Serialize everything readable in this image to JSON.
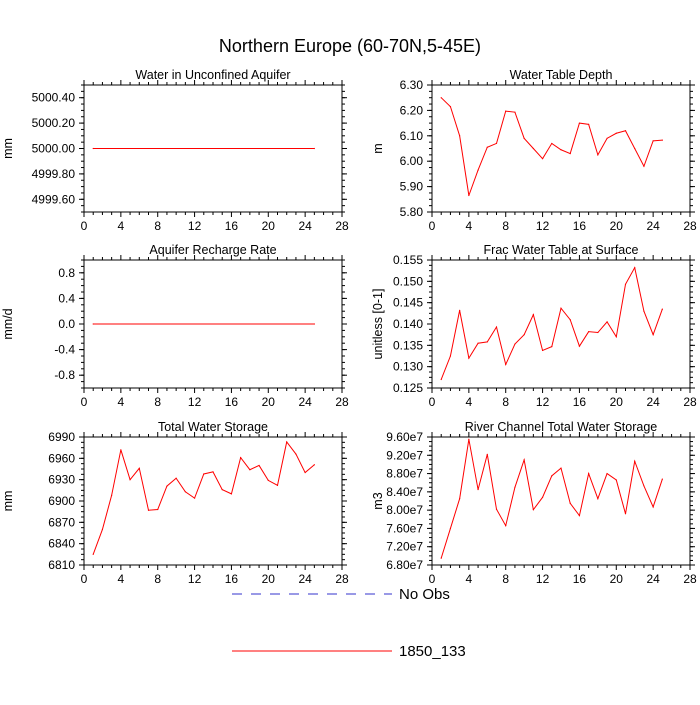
{
  "title": "Northern Europe (60-70N,5-45E)",
  "colors": {
    "series": "#ff0000",
    "noobs": "#3333cc",
    "axis": "#000000"
  },
  "legend": {
    "placement": "bottom-center",
    "items": [
      {
        "label": "No Obs",
        "style": "dashed",
        "color": "#3333cc"
      },
      {
        "label": "1850_133",
        "style": "solid",
        "color": "#ff0000"
      }
    ]
  },
  "chart_data": [
    {
      "type": "line",
      "title": "Water in Unconfined Aquifer",
      "ylabel": "mm",
      "xlim": [
        0,
        28
      ],
      "ylim": [
        4999.5,
        5000.5
      ],
      "xticks": [
        0,
        4,
        8,
        12,
        16,
        20,
        24,
        28
      ],
      "yticks": [
        4999.6,
        4999.8,
        5000.0,
        5000.2,
        5000.4
      ],
      "ytick_labels": [
        "4999.60",
        "4999.80",
        "5000.00",
        "5000.20",
        "5000.40"
      ],
      "x": [
        1,
        25
      ],
      "series": [
        {
          "values": [
            5000.0,
            5000.0
          ]
        }
      ]
    },
    {
      "type": "line",
      "title": "Water Table Depth",
      "ylabel": "m",
      "xlim": [
        0,
        28
      ],
      "ylim": [
        5.8,
        6.3
      ],
      "xticks": [
        0,
        4,
        8,
        12,
        16,
        20,
        24,
        28
      ],
      "yticks": [
        5.8,
        5.9,
        6.0,
        6.1,
        6.2,
        6.3
      ],
      "ytick_labels": [
        "5.80",
        "5.90",
        "6.00",
        "6.10",
        "6.20",
        "6.30"
      ],
      "x": [
        1,
        2,
        3,
        4,
        5,
        6,
        7,
        8,
        9,
        10,
        11,
        12,
        13,
        14,
        15,
        16,
        17,
        18,
        19,
        20,
        21,
        22,
        23,
        24,
        25
      ],
      "series": [
        {
          "values": [
            6.25,
            6.215,
            6.1,
            5.865,
            5.965,
            6.055,
            6.07,
            6.197,
            6.193,
            6.09,
            6.05,
            6.01,
            6.07,
            6.045,
            6.03,
            6.15,
            6.145,
            6.025,
            6.09,
            6.11,
            6.12,
            6.05,
            5.98,
            6.08,
            6.083
          ]
        }
      ]
    },
    {
      "type": "line",
      "title": "Aquifer Recharge Rate",
      "ylabel": "mm/d",
      "xlim": [
        0,
        28
      ],
      "ylim": [
        -1.0,
        1.0
      ],
      "xticks": [
        0,
        4,
        8,
        12,
        16,
        20,
        24,
        28
      ],
      "yticks": [
        -0.8,
        -0.4,
        0.0,
        0.4,
        0.8
      ],
      "ytick_labels": [
        "-0.8",
        "-0.4",
        "0.0",
        "0.4",
        "0.8"
      ],
      "x": [
        1,
        25
      ],
      "series": [
        {
          "values": [
            0.0,
            0.0
          ]
        }
      ]
    },
    {
      "type": "line",
      "title": "Frac Water Table at Surface",
      "ylabel": "unitless [0-1]",
      "xlim": [
        0,
        28
      ],
      "ylim": [
        0.125,
        0.155
      ],
      "xticks": [
        0,
        4,
        8,
        12,
        16,
        20,
        24,
        28
      ],
      "yticks": [
        0.125,
        0.13,
        0.135,
        0.14,
        0.145,
        0.15,
        0.155
      ],
      "ytick_labels": [
        "0.125",
        "0.130",
        "0.135",
        "0.140",
        "0.145",
        "0.150",
        "0.155"
      ],
      "x": [
        1,
        2,
        3,
        4,
        5,
        6,
        7,
        8,
        9,
        10,
        11,
        12,
        13,
        14,
        15,
        16,
        17,
        18,
        19,
        20,
        21,
        22,
        23,
        24,
        25
      ],
      "series": [
        {
          "values": [
            0.127,
            0.1325,
            0.1432,
            0.132,
            0.1355,
            0.1358,
            0.1393,
            0.1305,
            0.1353,
            0.1375,
            0.1422,
            0.1338,
            0.1347,
            0.1437,
            0.141,
            0.1348,
            0.1382,
            0.138,
            0.1405,
            0.137,
            0.1493,
            0.1532,
            0.143,
            0.1375,
            0.1435
          ]
        }
      ]
    },
    {
      "type": "line",
      "title": "Total Water Storage",
      "ylabel": "mm",
      "xlim": [
        0,
        28
      ],
      "ylim": [
        6810,
        6990
      ],
      "xticks": [
        0,
        4,
        8,
        12,
        16,
        20,
        24,
        28
      ],
      "yticks": [
        6810,
        6840,
        6870,
        6900,
        6930,
        6960,
        6990
      ],
      "ytick_labels": [
        "6810",
        "6840",
        "6870",
        "6900",
        "6930",
        "6960",
        "6990"
      ],
      "x": [
        1,
        2,
        3,
        4,
        5,
        6,
        7,
        8,
        9,
        10,
        11,
        12,
        13,
        14,
        15,
        16,
        17,
        18,
        19,
        20,
        21,
        22,
        23,
        24,
        25
      ],
      "series": [
        {
          "values": [
            6825,
            6860,
            6908,
            6972,
            6930,
            6946,
            6887,
            6888,
            6921,
            6932,
            6913,
            6904,
            6938,
            6941,
            6916,
            6910,
            6961,
            6944,
            6950,
            6929,
            6922,
            6983,
            6966,
            6940,
            6951
          ]
        }
      ]
    },
    {
      "type": "line",
      "title": "River Channel Total Water Storage",
      "ylabel": "m3",
      "xlim": [
        0,
        28
      ],
      "ylim": [
        68000000,
        96000000
      ],
      "xticks": [
        0,
        4,
        8,
        12,
        16,
        20,
        24,
        28
      ],
      "yticks": [
        68000000,
        72000000,
        76000000,
        80000000,
        84000000,
        88000000,
        92000000,
        96000000
      ],
      "ytick_labels": [
        "6.80e7",
        "7.20e7",
        "7.60e7",
        "8.00e7",
        "8.40e7",
        "8.80e7",
        "9.20e7",
        "9.60e7"
      ],
      "x": [
        1,
        2,
        3,
        4,
        5,
        6,
        7,
        8,
        9,
        10,
        11,
        12,
        13,
        14,
        15,
        16,
        17,
        18,
        19,
        20,
        21,
        22,
        23,
        24,
        25
      ],
      "series": [
        {
          "values": [
            69500000,
            76000000,
            82500000,
            95500000,
            84500000,
            92200000,
            80200000,
            76600000,
            85000000,
            91000000,
            80100000,
            82800000,
            87500000,
            89200000,
            81500000,
            78800000,
            88000000,
            82500000,
            88000000,
            86600000,
            79200000,
            90700000,
            85300000,
            80700000,
            86800000
          ]
        }
      ]
    }
  ]
}
